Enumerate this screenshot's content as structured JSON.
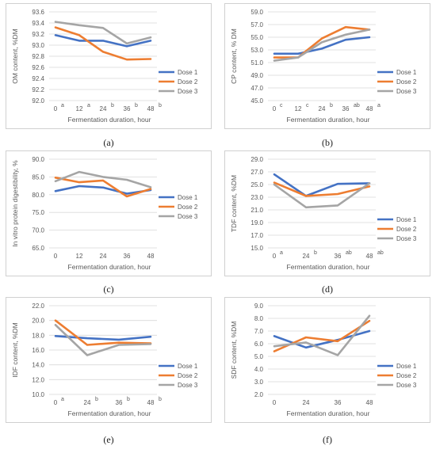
{
  "colors": {
    "dose1": "#4472c4",
    "dose2": "#ed7d31",
    "dose3": "#a5a5a5",
    "grid": "#d9d9d9"
  },
  "chart_data": [
    {
      "id": "a",
      "caption": "(a)",
      "type": "line",
      "categories": [
        "0",
        "12",
        "24",
        "36",
        "48"
      ],
      "sig_letters": [
        "a",
        "a",
        "b",
        "b",
        "b"
      ],
      "ylabel": "OM content, %DM",
      "xlabel": "Fermentation duration, hour",
      "ylim": [
        92.0,
        93.6
      ],
      "yticks": [
        "92.0",
        "92.2",
        "92.4",
        "92.6",
        "92.8",
        "93.0",
        "93.2",
        "93.4",
        "93.6"
      ],
      "grid": true,
      "legend_position": "bottom-right",
      "series": [
        {
          "name": "Dose 1",
          "color_key": "dose1",
          "values": [
            93.18,
            93.08,
            93.08,
            92.98,
            93.08
          ]
        },
        {
          "name": "Dose 2",
          "color_key": "dose2",
          "values": [
            93.32,
            93.18,
            92.88,
            92.74,
            92.75
          ]
        },
        {
          "name": "Dose 3",
          "color_key": "dose3",
          "values": [
            93.42,
            93.36,
            93.31,
            93.03,
            93.14
          ]
        }
      ]
    },
    {
      "id": "b",
      "caption": "(b)",
      "type": "line",
      "categories": [
        "0",
        "12",
        "24",
        "36",
        "48"
      ],
      "sig_letters": [
        "c",
        "c",
        "b",
        "ab",
        "a"
      ],
      "ylabel": "CP content, % DM",
      "xlabel": "Fermentation duration, hour",
      "ylim": [
        45.0,
        59.0
      ],
      "yticks": [
        "45.0",
        "47.0",
        "49.0",
        "51.0",
        "53.0",
        "55.0",
        "57.0",
        "59.0"
      ],
      "grid": true,
      "legend_position": "bottom-right",
      "series": [
        {
          "name": "Dose 1",
          "color_key": "dose1",
          "values": [
            52.4,
            52.4,
            53.2,
            54.6,
            55.0
          ]
        },
        {
          "name": "Dose 2",
          "color_key": "dose2",
          "values": [
            51.8,
            51.8,
            54.8,
            56.6,
            56.2
          ]
        },
        {
          "name": "Dose 3",
          "color_key": "dose3",
          "values": [
            51.3,
            51.8,
            54.2,
            55.4,
            56.2
          ]
        }
      ]
    },
    {
      "id": "c",
      "caption": "(c)",
      "type": "line",
      "categories": [
        "0",
        "12",
        "24",
        "36",
        "48"
      ],
      "sig_letters": [
        "",
        "",
        "",
        "",
        ""
      ],
      "ylabel": "In vitro protein digestibility, %",
      "xlabel": "Fermentation duration, hour",
      "ylim": [
        65.0,
        90.0
      ],
      "yticks": [
        "65.0",
        "70.0",
        "75.0",
        "80.0",
        "85.0",
        "90.0"
      ],
      "grid": true,
      "legend_position": "right",
      "series": [
        {
          "name": "Dose 1",
          "color_key": "dose1",
          "values": [
            81.0,
            82.4,
            82.0,
            80.3,
            81.3
          ]
        },
        {
          "name": "Dose 2",
          "color_key": "dose2",
          "values": [
            84.8,
            83.5,
            84.0,
            79.5,
            81.6
          ]
        },
        {
          "name": "Dose 3",
          "color_key": "dose3",
          "values": [
            83.8,
            86.4,
            85.0,
            84.2,
            82.1
          ]
        }
      ]
    },
    {
      "id": "d",
      "caption": "(d)",
      "type": "line",
      "categories": [
        "0",
        "24",
        "36",
        "48"
      ],
      "sig_letters": [
        "a",
        "b",
        "ab",
        "ab"
      ],
      "ylabel": "TDF content, %DM",
      "xlabel": "Fermentation duration, hour",
      "ylim": [
        15.0,
        29.0
      ],
      "yticks": [
        "15.0",
        "17.0",
        "19.0",
        "21.0",
        "23.0",
        "25.0",
        "27.0",
        "29.0"
      ],
      "grid": true,
      "legend_position": "bottom-right",
      "series": [
        {
          "name": "Dose 1",
          "color_key": "dose1",
          "values": [
            26.6,
            23.2,
            25.1,
            25.2
          ]
        },
        {
          "name": "Dose 2",
          "color_key": "dose2",
          "values": [
            25.3,
            23.2,
            23.5,
            24.7
          ]
        },
        {
          "name": "Dose 3",
          "color_key": "dose3",
          "values": [
            25.0,
            21.4,
            21.7,
            25.2
          ]
        }
      ]
    },
    {
      "id": "e",
      "caption": "(e)",
      "type": "line",
      "categories": [
        "0",
        "24",
        "36",
        "48"
      ],
      "sig_letters": [
        "a",
        "b",
        "b",
        "b"
      ],
      "ylabel": "IDF content, %DM",
      "xlabel": "Fermentation duration, hour",
      "ylim": [
        10.0,
        22.0
      ],
      "yticks": [
        "10.0",
        "12.0",
        "14.0",
        "16.0",
        "18.0",
        "20.0",
        "22.0"
      ],
      "grid": true,
      "legend_position": "bottom-right",
      "series": [
        {
          "name": "Dose 1",
          "color_key": "dose1",
          "values": [
            17.9,
            17.6,
            17.4,
            17.8
          ]
        },
        {
          "name": "Dose 2",
          "color_key": "dose2",
          "values": [
            20.0,
            16.7,
            17.0,
            16.9
          ]
        },
        {
          "name": "Dose 3",
          "color_key": "dose3",
          "values": [
            19.4,
            15.3,
            16.7,
            16.8
          ]
        }
      ]
    },
    {
      "id": "f",
      "caption": "(f)",
      "type": "line",
      "categories": [
        "0",
        "24",
        "36",
        "48"
      ],
      "sig_letters": [
        "",
        "",
        "",
        ""
      ],
      "ylabel": "SDF content, %DM",
      "xlabel": "Fermentation duration, hour",
      "ylim": [
        2.0,
        9.0
      ],
      "yticks": [
        "2.0",
        "3.0",
        "4.0",
        "5.0",
        "6.0",
        "7.0",
        "8.0",
        "9.0"
      ],
      "grid": true,
      "legend_position": "bottom-right",
      "series": [
        {
          "name": "Dose 1",
          "color_key": "dose1",
          "values": [
            6.6,
            5.7,
            6.3,
            7.0
          ]
        },
        {
          "name": "Dose 2",
          "color_key": "dose2",
          "values": [
            5.4,
            6.5,
            6.2,
            7.8
          ]
        },
        {
          "name": "Dose 3",
          "color_key": "dose3",
          "values": [
            5.8,
            6.1,
            5.1,
            8.2
          ]
        }
      ]
    }
  ]
}
